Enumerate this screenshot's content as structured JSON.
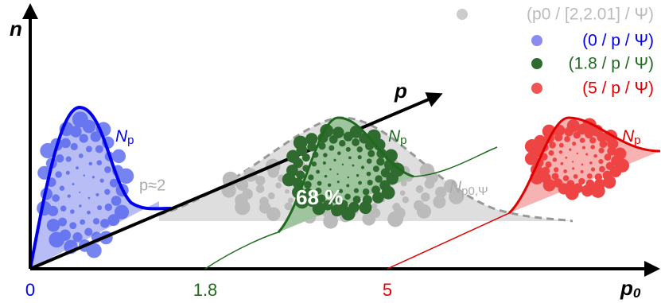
{
  "axes": {
    "y_label": "n",
    "x_label": {
      "base": "p",
      "sub": "0"
    },
    "diagonal_label": "p",
    "x_ticks": [
      "0",
      "1.8",
      "5"
    ]
  },
  "legend": [
    "(p0 / [2,2.01] / Ψ)",
    "(0 / p / Ψ)",
    "(1.8 / p / Ψ)",
    "(5 / p / Ψ)"
  ],
  "curve_labels": [
    {
      "base": "N",
      "sub": "p"
    },
    {
      "base": "N",
      "sub": "p"
    },
    {
      "base": "N",
      "sub": "p"
    },
    {
      "base": "N",
      "sub": "p0,Ψ"
    }
  ],
  "annotations": {
    "threshold": "p≈2",
    "fraction": "68 %"
  }
}
